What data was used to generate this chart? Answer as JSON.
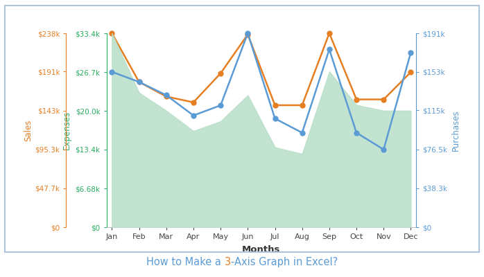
{
  "months": [
    "Jan",
    "Feb",
    "Mar",
    "Apr",
    "May",
    "Jun",
    "Jul",
    "Aug",
    "Sep",
    "Oct",
    "Nov",
    "Dec"
  ],
  "expenses": [
    33400,
    25000,
    22500,
    21500,
    26500,
    33200,
    21000,
    21000,
    33400,
    22000,
    22000,
    26700
  ],
  "sales_area": [
    238000,
    165000,
    143000,
    118000,
    130000,
    162000,
    98000,
    90000,
    191000,
    150000,
    143000,
    143000
  ],
  "purchases": [
    153000,
    143000,
    130000,
    110000,
    120000,
    191000,
    107000,
    93000,
    175000,
    93000,
    76500,
    172000
  ],
  "expenses_color": "#27ae60",
  "sales_color": "#e67e22",
  "purchases_color": "#5b9bd5",
  "green_area_color": "#b8dfc8",
  "green_area_alpha": 0.85,
  "expenses_ylim": [
    0,
    33400
  ],
  "sales_ylim": [
    0,
    238000
  ],
  "purchases_ylim": [
    0,
    191000
  ],
  "expenses_ticks": [
    0,
    6680,
    13400,
    20000,
    26700,
    33400
  ],
  "expenses_tick_labels": [
    "$0",
    "$6.68k",
    "$13.4k",
    "$20.0k",
    "$26.7k",
    "$33.4k"
  ],
  "sales_ticks": [
    0,
    47700,
    95300,
    143000,
    191000,
    238000
  ],
  "sales_tick_labels": [
    "$0",
    "$47.7k",
    "$95.3k",
    "$143k",
    "$191k",
    "$238k"
  ],
  "purchases_ticks": [
    0,
    38300,
    76500,
    115000,
    153000,
    191000
  ],
  "purchases_tick_labels": [
    "$0",
    "$38.3k",
    "$76.5k",
    "$115k",
    "$153k",
    "$191k"
  ],
  "xlabel": "Months",
  "expenses_ylabel": "Expenses",
  "sales_ylabel": "Sales",
  "purchases_ylabel": "Purchases",
  "title_parts": [
    {
      "text": "How to Make a ",
      "color": "#5b9bd5"
    },
    {
      "text": "3",
      "color": "#e67e22"
    },
    {
      "text": "-Axis Graph in Excel?",
      "color": "#5b9bd5"
    }
  ],
  "border_color": "#b0c4de",
  "background_color": "#ffffff",
  "line_width": 1.8,
  "marker_size": 5,
  "marker_style": "o"
}
